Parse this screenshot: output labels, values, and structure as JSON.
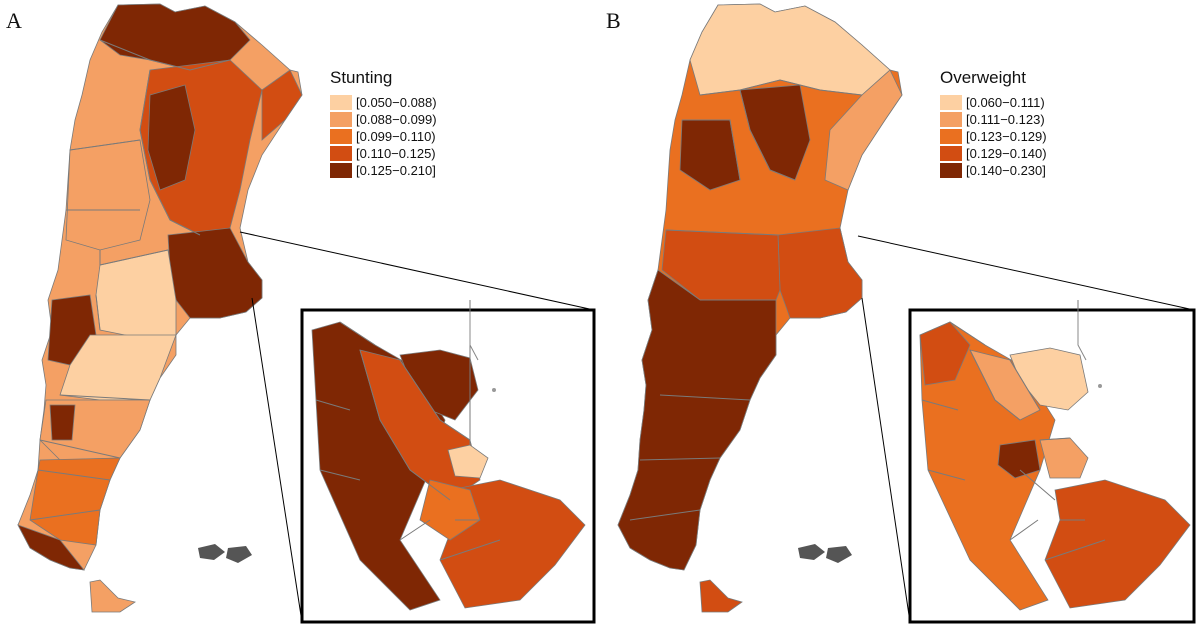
{
  "panels": [
    {
      "letter": "A",
      "legend_title": "Stunting",
      "classes": [
        {
          "label": "[0.050−0.088)",
          "color": "#fdd0a2"
        },
        {
          "label": "[0.088−0.099)",
          "color": "#f4a064"
        },
        {
          "label": "[0.099−0.110)",
          "color": "#ea7020"
        },
        {
          "label": "[0.110−0.125)",
          "color": "#d24d12"
        },
        {
          "label": "[0.125−0.210]",
          "color": "#7f2704"
        }
      ]
    },
    {
      "letter": "B",
      "legend_title": "Overweight",
      "classes": [
        {
          "label": "[0.060−0.111)",
          "color": "#fdd0a2"
        },
        {
          "label": "[0.111−0.123)",
          "color": "#f4a064"
        },
        {
          "label": "[0.123−0.129)",
          "color": "#ea7020"
        },
        {
          "label": "[0.129−0.140)",
          "color": "#d24d12"
        },
        {
          "label": "[0.140−0.230]",
          "color": "#7f2704"
        }
      ]
    }
  ],
  "colors": {
    "border": "#7a7a7a",
    "islands": "#555555",
    "inset_frame": "#000000"
  }
}
